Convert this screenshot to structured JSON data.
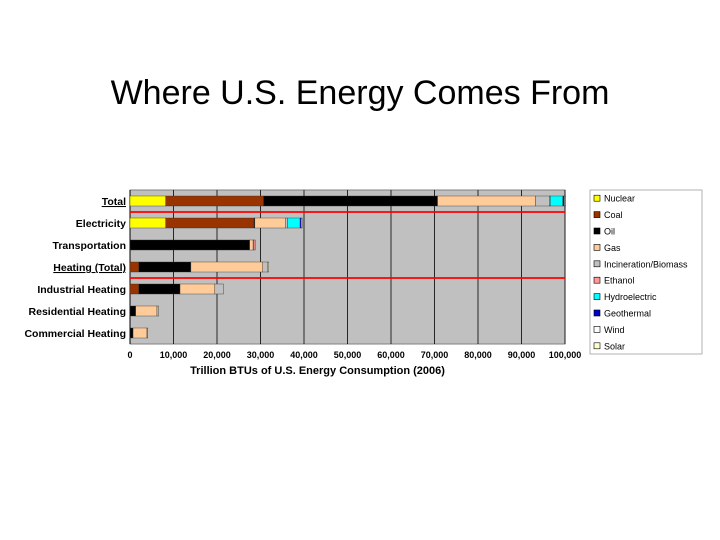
{
  "slide": {
    "title": "Where U.S. Energy Comes From"
  },
  "chart_data": {
    "type": "bar",
    "orientation": "horizontal",
    "stacked": true,
    "categories": [
      "Total",
      "Electricity",
      "Transportation",
      "Heating (Total)",
      "Industrial Heating",
      "Residential Heating",
      "Commercial Heating"
    ],
    "underlined_categories": [
      "Total",
      "Heating (Total)"
    ],
    "xlabel": "Trillion BTUs of U.S. Energy Consumption (2006)",
    "ylabel": "",
    "xlim": [
      0,
      100000
    ],
    "xticks": [
      0,
      10000,
      20000,
      30000,
      40000,
      50000,
      60000,
      70000,
      80000,
      90000,
      100000
    ],
    "xtick_labels": [
      "0",
      "10,000",
      "20,000",
      "30,000",
      "40,000",
      "50,000",
      "60,000",
      "70,000",
      "80,000",
      "90,000",
      "100,000"
    ],
    "grid": true,
    "legend_position": "right",
    "series": [
      {
        "name": "Nuclear",
        "color": "#ffff00",
        "values": [
          8200,
          8200,
          0,
          0,
          0,
          0,
          0
        ]
      },
      {
        "name": "Coal",
        "color": "#993300",
        "values": [
          22500,
          20300,
          0,
          2000,
          2000,
          0,
          0
        ]
      },
      {
        "name": "Oil",
        "color": "#000000",
        "values": [
          40000,
          200,
          27500,
          12000,
          9500,
          1300,
          700
        ]
      },
      {
        "name": "Gas",
        "color": "#ffcc99",
        "values": [
          22500,
          7000,
          800,
          16500,
          8000,
          4900,
          3200
        ]
      },
      {
        "name": "Incineration/Biomass",
        "color": "#c0c0c0",
        "values": [
          3200,
          500,
          200,
          1200,
          2000,
          400,
          100
        ]
      },
      {
        "name": "Ethanol",
        "color": "#ff9999",
        "values": [
          200,
          0,
          300,
          0,
          0,
          0,
          0
        ]
      },
      {
        "name": "Hydroelectric",
        "color": "#00ffff",
        "values": [
          2900,
          2900,
          0,
          0,
          0,
          0,
          0
        ]
      },
      {
        "name": "Geothermal",
        "color": "#0000cc",
        "values": [
          300,
          300,
          0,
          0,
          0,
          0,
          0
        ]
      },
      {
        "name": "Wind",
        "color": "#ffffff",
        "values": [
          200,
          200,
          0,
          0,
          0,
          0,
          0
        ]
      },
      {
        "name": "Solar",
        "color": "#ffffcc",
        "values": [
          100,
          0,
          0,
          100,
          0,
          0,
          0
        ]
      }
    ],
    "colors": {
      "plot_background": "#c0c0c0",
      "gridline": "#000000",
      "separator": "#ff0000"
    }
  }
}
